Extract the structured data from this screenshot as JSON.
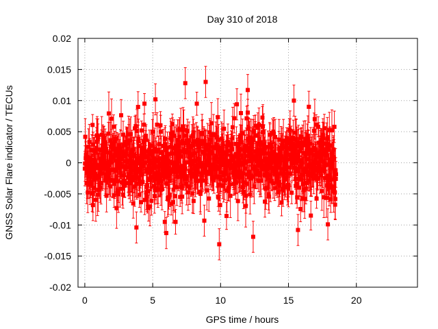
{
  "chart_data": {
    "type": "scatter",
    "title": "Day 310 of 2018",
    "xlabel": "GPS time / hours",
    "ylabel": "GNSS Solar Flare indicator / TECUs",
    "xlim": [
      -0.5,
      24.5
    ],
    "ylim": [
      -0.02,
      0.02
    ],
    "x_ticks": [
      "0",
      "5",
      "10",
      "15",
      "20"
    ],
    "x_tick_values": [
      0,
      5,
      10,
      15,
      20
    ],
    "y_ticks": [
      "0.02",
      "0.015",
      "0.01",
      "0.005",
      "0",
      "-0.005",
      "-0.01",
      "-0.015",
      "-0.02"
    ],
    "y_tick_values": [
      0.02,
      0.015,
      0.01,
      0.005,
      0,
      -0.005,
      -0.01,
      -0.015,
      -0.02
    ],
    "grid": true,
    "legend": "none",
    "series": [
      {
        "color": "#ff0000",
        "marker": "square",
        "error_bars": true,
        "x_range": [
          0,
          18.5
        ],
        "typical_spread": 0.004,
        "typical_error": 0.0025,
        "notable_points": [
          {
            "x": 7.4,
            "y": 0.0128
          },
          {
            "x": 8.9,
            "y": 0.013
          },
          {
            "x": 12.0,
            "y": 0.0117
          },
          {
            "x": 5.2,
            "y": 0.0102
          },
          {
            "x": 15.4,
            "y": 0.01
          },
          {
            "x": 11.2,
            "y": 0.0094
          },
          {
            "x": 16.5,
            "y": 0.009
          },
          {
            "x": 9.9,
            "y": -0.0131
          },
          {
            "x": 12.4,
            "y": -0.0119
          },
          {
            "x": 3.8,
            "y": -0.0104
          },
          {
            "x": 6.0,
            "y": -0.0113
          },
          {
            "x": 15.7,
            "y": -0.0108
          },
          {
            "x": 0.6,
            "y": -0.0068
          },
          {
            "x": 17.9,
            "y": -0.0099
          },
          {
            "x": 8.8,
            "y": -0.0093
          }
        ]
      }
    ]
  }
}
